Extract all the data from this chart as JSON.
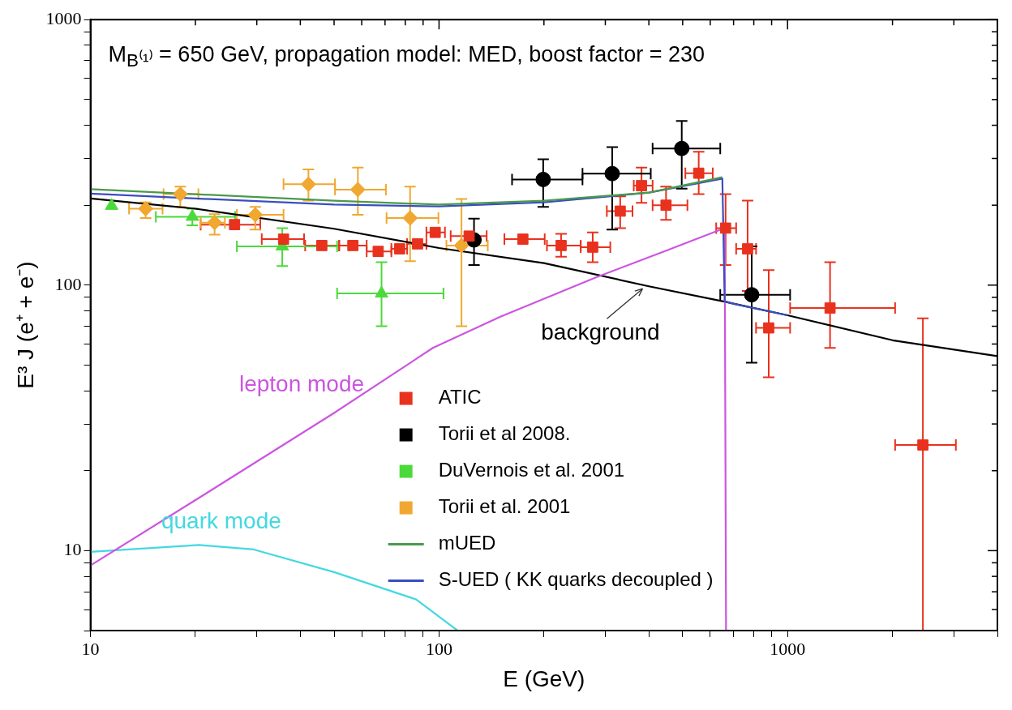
{
  "chart_data": {
    "type": "scatter",
    "title": "M$_{B⁽¹⁾}$ =  650 GeV, propagation model: MED, boost factor = 230",
    "xlabel": "E (GeV)",
    "ylabel": "E³ J (e⁺ + e⁻)",
    "log": "xy",
    "grid": false,
    "legend": "bottom",
    "xlim": [
      10,
      4000
    ],
    "ylim": [
      5,
      1000
    ],
    "xticks": [
      10,
      {
        "value": 20,
        "label": null
      },
      {
        "value": 30,
        "label": null
      },
      {
        "value": 40,
        "label": null
      },
      {
        "value": 50,
        "label": null
      },
      {
        "value": 60,
        "label": null
      },
      {
        "value": 70,
        "label": null
      },
      {
        "value": 80,
        "label": null
      },
      {
        "value": 90,
        "label": null
      },
      100,
      {
        "value": 200,
        "label": null
      },
      {
        "value": 300,
        "label": null
      },
      {
        "value": 400,
        "label": null
      },
      {
        "value": 500,
        "label": null
      },
      {
        "value": 600,
        "label": null
      },
      {
        "value": 700,
        "label": null
      },
      {
        "value": 800,
        "label": null
      },
      {
        "value": 900,
        "label": null
      },
      1000,
      {
        "value": 2000,
        "label": null
      },
      {
        "value": 3000,
        "label": null
      },
      {
        "value": 4000,
        "label": null
      }
    ],
    "yticks": [
      {
        "value": 5,
        "label": null
      },
      {
        "value": 6,
        "label": null
      },
      {
        "value": 7,
        "label": null
      },
      {
        "value": 8,
        "label": null
      },
      {
        "value": 9,
        "label": null
      },
      10,
      {
        "value": 20,
        "label": null
      },
      {
        "value": 30,
        "label": null
      },
      {
        "value": 40,
        "label": null
      },
      {
        "value": 50,
        "label": null
      },
      {
        "value": 60,
        "label": null
      },
      {
        "value": 70,
        "label": null
      },
      {
        "value": 80,
        "label": null
      },
      {
        "value": 90,
        "label": null
      },
      100,
      {
        "value": 200,
        "label": null
      },
      {
        "value": 300,
        "label": null
      },
      {
        "value": 400,
        "label": null
      },
      {
        "value": 500,
        "label": null
      },
      {
        "value": 600,
        "label": null
      },
      {
        "value": 700,
        "label": null
      },
      {
        "value": 800,
        "label": null
      },
      {
        "value": 900,
        "label": null
      },
      1000
    ],
    "series": [
      {
        "name": "ATIC",
        "color": "#e8321e",
        "marker": "square",
        "x": [
          25.9,
          35.8,
          46.1,
          56.6,
          66.9,
          77.1,
          86.8,
          97.5,
          122,
          174,
          224,
          276,
          331,
          381,
          448,
          556,
          664,
          768,
          883,
          1324,
          2445
        ],
        "values": [
          169,
          149,
          141,
          141,
          134,
          137,
          143,
          158,
          153,
          149,
          141,
          139,
          190,
          237,
          200,
          264,
          164,
          137,
          69,
          82,
          25
        ],
        "xerrors": [
          [
            20.7,
            30.7
          ],
          [
            31,
            41
          ],
          [
            41.3,
            51.7
          ],
          [
            51.7,
            62
          ],
          [
            62,
            73
          ],
          [
            73,
            81
          ],
          [
            81,
            92
          ],
          [
            92,
            104
          ],
          [
            108,
            137
          ],
          [
            154,
            201
          ],
          [
            204,
            255
          ],
          [
            255,
            310
          ],
          [
            303,
            359
          ],
          [
            362,
            410
          ],
          [
            410,
            516
          ],
          [
            509,
            610
          ],
          [
            624,
            712
          ],
          [
            712,
            812
          ],
          [
            812,
            1017
          ],
          [
            1017,
            2035
          ],
          [
            2035,
            3040
          ]
        ],
        "errors": [
          null,
          null,
          null,
          null,
          null,
          null,
          null,
          null,
          null,
          null,
          [
            128,
            156
          ],
          [
            122,
            158
          ],
          [
            164,
            216
          ],
          [
            204,
            277
          ],
          [
            176,
            235
          ],
          [
            220,
            318
          ],
          [
            119,
            220
          ],
          [
            95,
            208
          ],
          [
            45,
            114
          ],
          [
            58,
            122
          ],
          [
            5,
            75
          ]
        ]
      },
      {
        "name": "Torii et al 2008.",
        "color": "#000000",
        "marker": "circle",
        "x": [
          126,
          199,
          314,
          497,
          789
        ],
        "values": [
          148,
          250,
          263,
          327,
          92
        ],
        "xerrors": [
          null,
          [
            162,
            258
          ],
          [
            258,
            405
          ],
          [
            410,
            641
          ],
          [
            641,
            1017
          ]
        ],
        "errors": [
          [
            119,
            178
          ],
          [
            197,
            298
          ],
          [
            162,
            331
          ],
          [
            231,
            415
          ],
          [
            51,
            140
          ]
        ]
      },
      {
        "name": "DuVernois et al. 2001",
        "color": "#4cd93c",
        "marker": "triangle",
        "x": [
          11.5,
          19.6,
          35.5,
          68.4
        ],
        "values": [
          199,
          181,
          140,
          93
        ],
        "xerrors": [
          null,
          [
            15.4,
            26
          ],
          [
            26.3,
            51
          ],
          [
            51,
            103
          ]
        ],
        "errors": [
          null,
          [
            168,
            194
          ],
          [
            118,
            164
          ],
          [
            70,
            122
          ]
        ]
      },
      {
        "name": "Torii et al. 2001",
        "color": "#f0a830",
        "marker": "diamond",
        "x": [
          14.4,
          18.1,
          22.7,
          29.7,
          42.2,
          58.5,
          82.6,
          116
        ],
        "values": [
          194,
          220,
          172,
          184,
          240,
          229,
          179,
          141
        ],
        "xerrors": [
          [
            12.9,
            16.1
          ],
          [
            16.2,
            20.4
          ],
          [
            20.7,
            24.3
          ],
          [
            26.3,
            35.8
          ],
          [
            35.8,
            50.3
          ],
          [
            50.3,
            70.4
          ],
          [
            70.7,
            99.6
          ],
          [
            105,
            138
          ]
        ],
        "errors": [
          [
            179,
            205
          ],
          [
            197,
            235
          ],
          [
            155,
            185
          ],
          [
            162,
            197
          ],
          [
            208,
            273
          ],
          [
            184,
            277
          ],
          [
            123,
            235
          ],
          [
            70,
            211
          ]
        ]
      },
      {
        "type": "line",
        "name": "mUED",
        "color": "#4a9a4a",
        "marker": "none",
        "x": [
          10,
          20,
          50,
          100,
          200,
          400,
          650
        ],
        "values": [
          230,
          220,
          208,
          201,
          208,
          223,
          255
        ]
      },
      {
        "type": "line",
        "name": "S-UED ( KK quarks decoupled )",
        "color": "#3a4ec0",
        "marker": "none",
        "x": [
          10,
          20,
          50,
          100,
          200,
          400,
          650,
          660,
          700,
          1000
        ],
        "values": [
          221,
          212,
          201,
          198,
          205,
          223,
          252,
          87,
          85,
          77
        ]
      },
      {
        "type": "line",
        "color": "#cc55e0",
        "marker": "none",
        "x": [
          10,
          20,
          50,
          96,
          150,
          282,
          450,
          643,
          660,
          666
        ],
        "values": [
          8.8,
          15.5,
          33,
          58,
          76,
          107,
          135,
          162,
          165,
          5
        ]
      },
      {
        "type": "line",
        "color": "#44d8e0",
        "marker": "none",
        "x": [
          10,
          20.5,
          29.4,
          50,
          86,
          113
        ],
        "values": [
          9.9,
          10.5,
          10.1,
          8.3,
          6.55,
          5
        ]
      },
      {
        "type": "line",
        "color": "#000000",
        "marker": "none",
        "x": [
          10,
          20,
          50,
          100,
          200,
          400,
          650,
          1000,
          2000,
          4000
        ],
        "values": [
          212,
          194,
          163,
          138,
          121,
          99,
          87,
          77,
          62,
          54
        ]
      }
    ],
    "annotations": [
      "lepton mode",
      "quark mode",
      {
        "text": "background",
        "x": 390,
        "y": 99
      }
    ]
  }
}
